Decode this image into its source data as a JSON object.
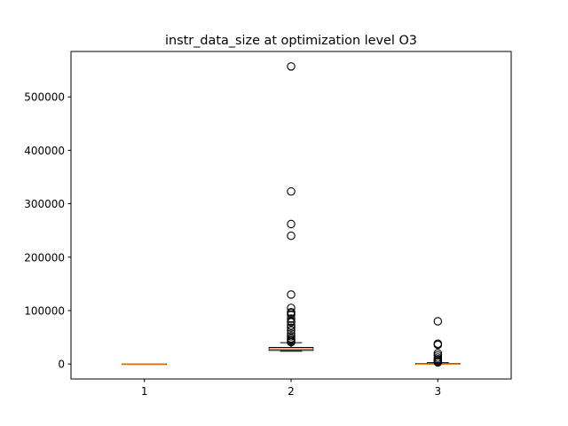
{
  "chart_data": {
    "type": "boxplot",
    "title": "instr_data_size at optimization level O3",
    "xlabel": "",
    "ylabel": "",
    "categories": [
      "1",
      "2",
      "3"
    ],
    "ylim": [
      -28000,
      585000
    ],
    "yticks": [
      0,
      100000,
      200000,
      300000,
      400000,
      500000
    ],
    "ytick_labels": [
      "0",
      "100000",
      "200000",
      "300000",
      "400000",
      "500000"
    ],
    "grid": false,
    "colors": {
      "median": "#ff7f0e",
      "box": "#000000",
      "flier": "#000000"
    },
    "boxes": [
      {
        "label": "1",
        "whisker_low": 0,
        "q1": 0,
        "median": 0,
        "q3": 0,
        "whisker_high": 0,
        "fliers": []
      },
      {
        "label": "2",
        "whisker_low": 24000,
        "q1": 25500,
        "median": 28000,
        "q3": 31000,
        "whisker_high": 40000,
        "fliers": [
          41000,
          43000,
          45000,
          48000,
          52000,
          57000,
          63000,
          68000,
          72000,
          78000,
          80000,
          85000,
          92000,
          95000,
          97000,
          105000,
          130000,
          240000,
          262000,
          323000,
          557000
        ]
      },
      {
        "label": "3",
        "whisker_low": 0,
        "q1": 0,
        "median": 0,
        "q3": 1000,
        "whisker_high": 2500,
        "fliers": [
          3000,
          5000,
          7000,
          9000,
          12000,
          16000,
          20000,
          36000,
          38000,
          80000
        ]
      }
    ]
  }
}
